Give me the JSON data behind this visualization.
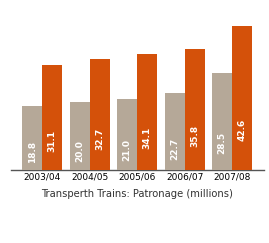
{
  "categories": [
    "2003/04",
    "2004/05",
    "2005/06",
    "2006/07",
    "2007/08"
  ],
  "fare_paying": [
    18.8,
    20.0,
    21.0,
    22.7,
    28.5
  ],
  "total": [
    31.1,
    32.7,
    34.1,
    35.8,
    42.6
  ],
  "fare_color": "#b5a898",
  "total_color": "#d4510a",
  "label_color": "#ffffff",
  "title": "Transperth Trains: Patronage (millions)",
  "ylim": [
    0,
    48
  ],
  "bar_width": 0.42,
  "title_fontsize": 7.2,
  "tick_fontsize": 6.5,
  "label_fontsize": 6.5,
  "legend_fontsize": 6.2
}
